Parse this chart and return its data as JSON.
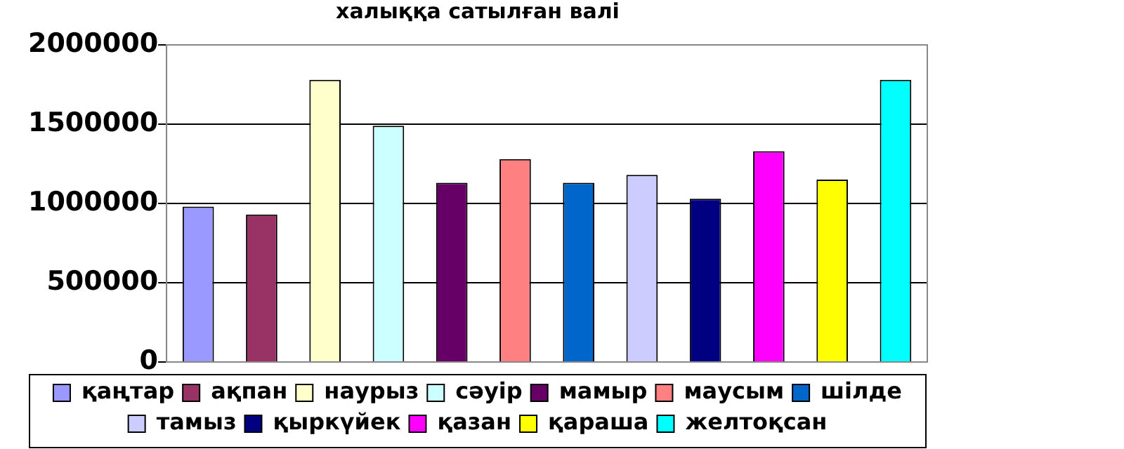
{
  "chart_data": {
    "type": "bar",
    "title": "халыққа сатылған валі",
    "categories": [
      null,
      null,
      null,
      null,
      null,
      null,
      null,
      null,
      null,
      null,
      null,
      null
    ],
    "series": [
      {
        "name": "қаңтар",
        "color": "#9999ff",
        "values": [
          980000,
          null,
          null,
          null,
          null,
          null,
          null,
          null,
          null,
          null,
          null,
          null
        ]
      },
      {
        "name": "ақпан",
        "color": "#993366",
        "values": [
          null,
          930000,
          null,
          null,
          null,
          null,
          null,
          null,
          null,
          null,
          null,
          null
        ]
      },
      {
        "name": "наурыз",
        "color": "#ffffcc",
        "values": [
          null,
          null,
          1780000,
          null,
          null,
          null,
          null,
          null,
          null,
          null,
          null,
          null
        ]
      },
      {
        "name": "сәуір",
        "color": "#ccffff",
        "values": [
          null,
          null,
          null,
          1490000,
          null,
          null,
          null,
          null,
          null,
          null,
          null,
          null
        ]
      },
      {
        "name": "мамыр",
        "color": "#660066",
        "values": [
          null,
          null,
          null,
          null,
          1130000,
          null,
          null,
          null,
          null,
          null,
          null,
          null
        ]
      },
      {
        "name": "маусым",
        "color": "#ff8080",
        "values": [
          null,
          null,
          null,
          null,
          null,
          1280000,
          null,
          null,
          null,
          null,
          null,
          null
        ]
      },
      {
        "name": "шілде",
        "color": "#0066cc",
        "values": [
          null,
          null,
          null,
          null,
          null,
          null,
          1130000,
          null,
          null,
          null,
          null,
          null
        ]
      },
      {
        "name": "тамыз",
        "color": "#ccccff",
        "values": [
          null,
          null,
          null,
          null,
          null,
          null,
          null,
          1180000,
          null,
          null,
          null,
          null
        ]
      },
      {
        "name": "қыркүйек",
        "color": "#000080",
        "values": [
          null,
          null,
          null,
          null,
          null,
          null,
          null,
          null,
          1030000,
          null,
          null,
          null
        ]
      },
      {
        "name": "қазан",
        "color": "#ff00ff",
        "values": [
          null,
          null,
          null,
          null,
          null,
          null,
          null,
          null,
          null,
          1330000,
          null,
          null
        ]
      },
      {
        "name": "қараша",
        "color": "#ffff00",
        "values": [
          null,
          null,
          null,
          null,
          null,
          null,
          null,
          null,
          null,
          null,
          1150000,
          null
        ]
      },
      {
        "name": "желтоқсан",
        "color": "#00ffff",
        "values": [
          null,
          null,
          null,
          null,
          null,
          null,
          null,
          null,
          null,
          null,
          null,
          1780000
        ]
      }
    ],
    "ylim": [
      0,
      2000000
    ],
    "yticks": [
      0,
      500000,
      1000000,
      1500000,
      2000000
    ],
    "grid": "y",
    "legend": "bottom",
    "tick_labels": "y"
  }
}
